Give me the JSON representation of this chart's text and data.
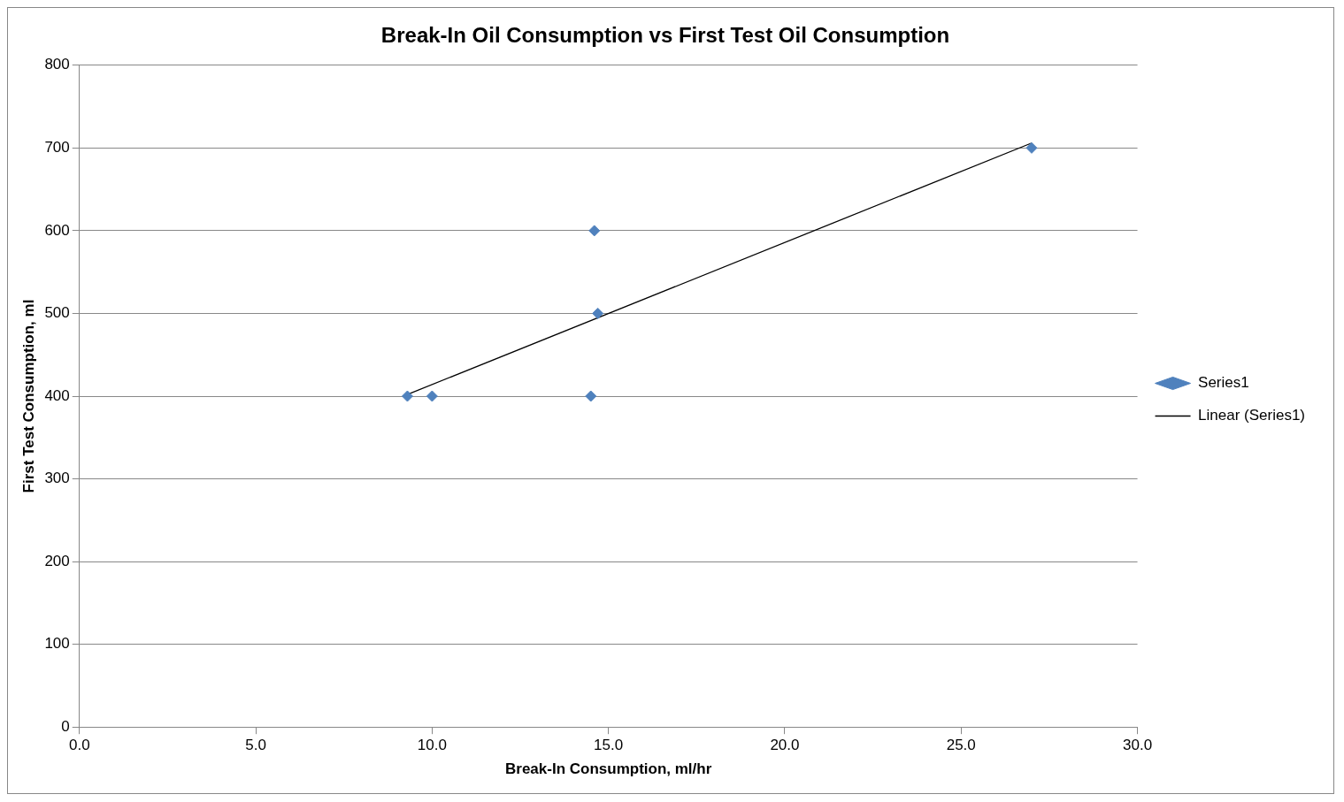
{
  "chart_data": {
    "type": "scatter",
    "title": "Break-In Oil Consumption vs First Test Oil Consumption",
    "xlabel": "Break-In Consumption, ml/hr",
    "ylabel": "First Test Consumption, ml",
    "series": [
      {
        "name": "Series1",
        "type": "scatter",
        "color": "#4f81bd",
        "marker": "diamond",
        "x": [
          9.3,
          10.0,
          14.5,
          14.6,
          14.7,
          27.0
        ],
        "values": [
          400,
          400,
          400,
          600,
          500,
          700
        ]
      },
      {
        "name": "Linear (Series1)",
        "type": "line",
        "color": "#000000",
        "marker": "none",
        "line_style": "solid",
        "x": [
          9.3,
          27.0
        ],
        "values": [
          402,
          706
        ]
      }
    ],
    "xlim": [
      0,
      30
    ],
    "xticks": [
      {
        "value": 0,
        "label": "0.0"
      },
      {
        "value": 5,
        "label": "5.0"
      },
      {
        "value": 10,
        "label": "10.0"
      },
      {
        "value": 15,
        "label": "15.0"
      },
      {
        "value": 20,
        "label": "20.0"
      },
      {
        "value": 25,
        "label": "25.0"
      },
      {
        "value": 30,
        "label": "30.0"
      }
    ],
    "ylim": [
      0,
      800
    ],
    "yticks": [
      0,
      100,
      200,
      300,
      400,
      500,
      600,
      700,
      800
    ],
    "grid": "y",
    "legend": "right"
  }
}
